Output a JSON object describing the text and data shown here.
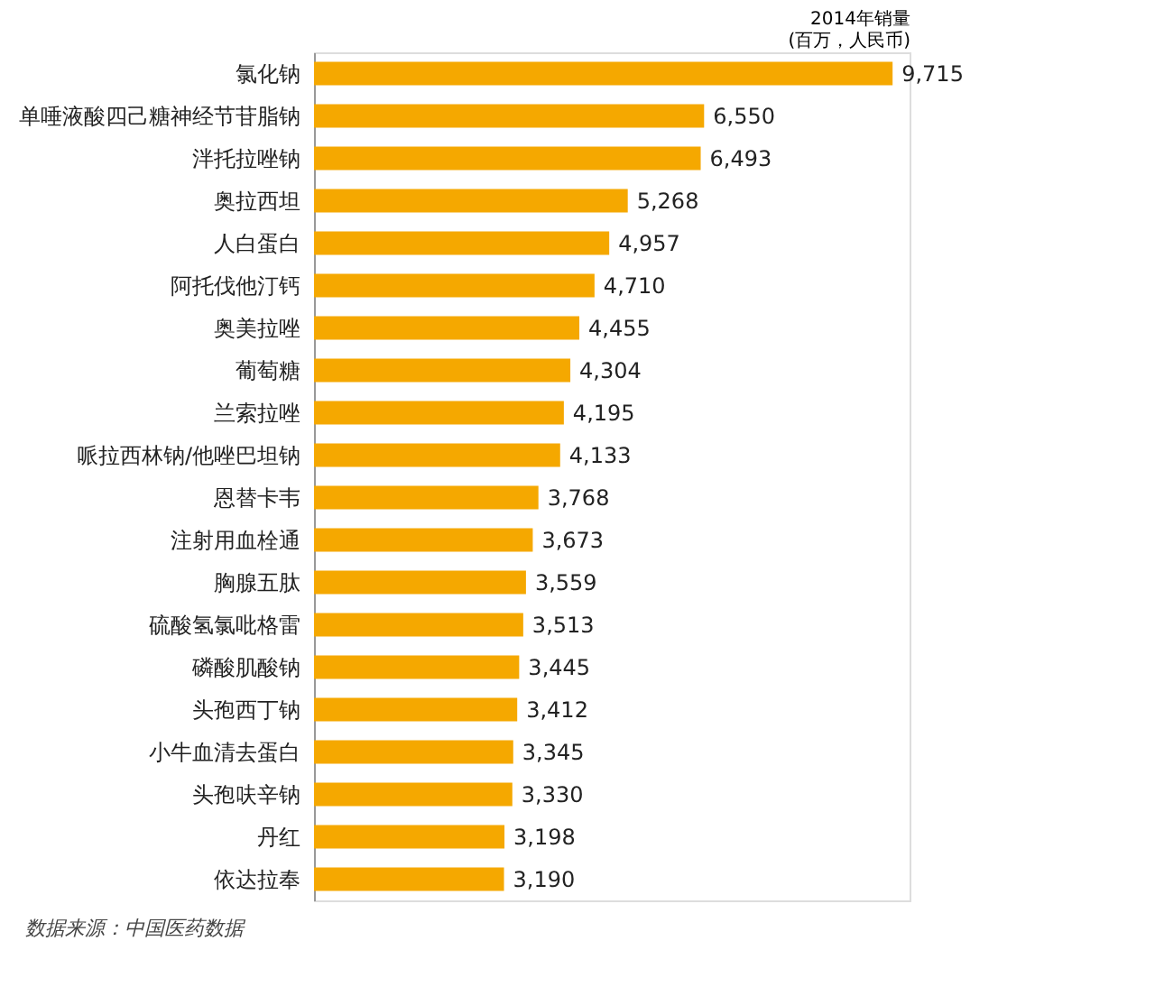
{
  "chart_data": {
    "type": "bar",
    "orientation": "horizontal",
    "xlabel": "2014年销量\n(百万，人民币)",
    "categories": [
      "氯化钠",
      "单唾液酸四己糖神经节苷脂钠",
      "泮托拉唑钠",
      "奥拉西坦",
      "人白蛋白",
      "阿托伐他汀钙",
      "奥美拉唑",
      "葡萄糖",
      "兰索拉唑",
      "哌拉西林钠/他唑巴坦钠",
      "恩替卡韦",
      "注射用血栓通",
      "胸腺五肽",
      "硫酸氢氯吡格雷",
      "磷酸肌酸钠",
      "头孢西丁钠",
      "小牛血清去蛋白",
      "头孢呋辛钠",
      "丹红",
      "依达拉奉"
    ],
    "values": [
      9715,
      6550,
      6493,
      5268,
      4957,
      4710,
      4455,
      4304,
      4195,
      4133,
      3768,
      3673,
      3559,
      3513,
      3445,
      3412,
      3345,
      3330,
      3198,
      3190
    ],
    "value_labels": [
      "9,715",
      "6,550",
      "6,493",
      "5,268",
      "4,957",
      "4,710",
      "4,455",
      "4,304",
      "4,195",
      "4,133",
      "3,768",
      "3,673",
      "3,559",
      "3,513",
      "3,445",
      "3,412",
      "3,345",
      "3,330",
      "3,198",
      "3,190"
    ],
    "color": "#f5a800",
    "tick_labels": "y",
    "grid": false,
    "annotations": [
      "数据来源：中国医药数据"
    ]
  }
}
